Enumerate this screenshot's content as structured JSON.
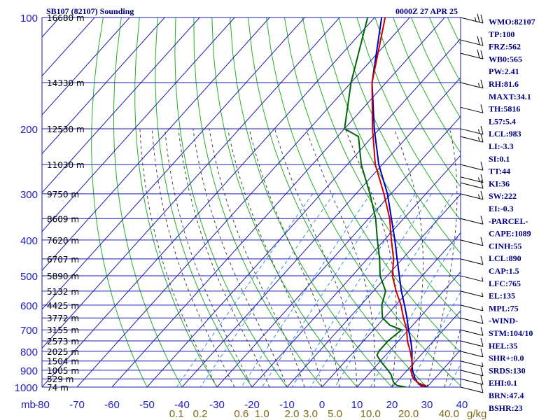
{
  "header": {
    "station": "SB107 (82107) Sounding",
    "time": "0000Z 27 APR 25"
  },
  "colors": {
    "grid": "#1c1cb0",
    "isotherm": "#1c1cb0",
    "dry_adiabat": "#21b021",
    "moist_adiabat": "#444444",
    "mixing_ratio": "#3b8ee0",
    "temperature": "#cc0000",
    "dewpoint": "#006400",
    "parcel": "#0000c0",
    "wind_barb": "#000000",
    "indices_text": "#00007f"
  },
  "chart_data": {
    "type": "skew-t",
    "x_unit_label": "mb",
    "mixing_unit_label": "g/kg",
    "pressure_levels": [
      {
        "p": 100,
        "label": "100",
        "height": "16680 m"
      },
      {
        "p": 150,
        "label": "",
        "height": "14330 m"
      },
      {
        "p": 200,
        "label": "200",
        "height": "12530 m"
      },
      {
        "p": 250,
        "label": "",
        "height": "11030 m"
      },
      {
        "p": 300,
        "label": "300",
        "height": "9750 m"
      },
      {
        "p": 350,
        "label": "",
        "height": "8609 m"
      },
      {
        "p": 400,
        "label": "400",
        "height": "7620 m"
      },
      {
        "p": 450,
        "label": "",
        "height": "6707 m"
      },
      {
        "p": 500,
        "label": "500",
        "height": "5890 m"
      },
      {
        "p": 550,
        "label": "",
        "height": "5132 m"
      },
      {
        "p": 600,
        "label": "600",
        "height": "4425 m"
      },
      {
        "p": 650,
        "label": "",
        "height": "3772 m"
      },
      {
        "p": 700,
        "label": "700",
        "height": "3155 m"
      },
      {
        "p": 750,
        "label": "",
        "height": "2573 m"
      },
      {
        "p": 800,
        "label": "800",
        "height": "2025 m"
      },
      {
        "p": 850,
        "label": "",
        "height": "1504 m"
      },
      {
        "p": 900,
        "label": "900",
        "height": "1005 m"
      },
      {
        "p": 950,
        "label": "",
        "height": "529 m"
      },
      {
        "p": 1000,
        "label": "1000",
        "height": "74 m"
      }
    ],
    "temperature_ticks": [
      "-80",
      "-70",
      "-60",
      "-50",
      "-40",
      "-30",
      "-20",
      "-10",
      "0",
      "10",
      "20",
      "30",
      "40"
    ],
    "mixing_ratio_ticks": [
      "0.1",
      "0.2",
      "0.6",
      "1.0",
      "2.0",
      "3.0",
      "5.0",
      "10.0",
      "20.0",
      "40.0"
    ],
    "mixing_ratio_values": [
      0.1,
      0.2,
      0.6,
      1.0,
      2.0,
      3.0,
      5.0,
      10.0,
      20.0,
      40.0
    ],
    "temperature_profile": [
      {
        "p": 1000,
        "t": 28.0
      },
      {
        "p": 990,
        "t": 29.0
      },
      {
        "p": 975,
        "t": 26.5
      },
      {
        "p": 950,
        "t": 24.0
      },
      {
        "p": 925,
        "t": 22.5
      },
      {
        "p": 900,
        "t": 21.0
      },
      {
        "p": 880,
        "t": 20.5
      },
      {
        "p": 850,
        "t": 19.0
      },
      {
        "p": 800,
        "t": 16.0
      },
      {
        "p": 750,
        "t": 12.5
      },
      {
        "p": 700,
        "t": 9.5
      },
      {
        "p": 650,
        "t": 5.5
      },
      {
        "p": 600,
        "t": 1.5
      },
      {
        "p": 550,
        "t": -3.5
      },
      {
        "p": 500,
        "t": -8.5
      },
      {
        "p": 450,
        "t": -12.5
      },
      {
        "p": 400,
        "t": -18.0
      },
      {
        "p": 350,
        "t": -24.0
      },
      {
        "p": 300,
        "t": -32.0
      },
      {
        "p": 250,
        "t": -42.0
      },
      {
        "p": 200,
        "t": -52.0
      },
      {
        "p": 150,
        "t": -64.0
      },
      {
        "p": 100,
        "t": -77.0
      }
    ],
    "dewpoint_profile": [
      {
        "p": 1000,
        "t": 24.0
      },
      {
        "p": 990,
        "t": 21.0
      },
      {
        "p": 975,
        "t": 19.5
      },
      {
        "p": 950,
        "t": 18.0
      },
      {
        "p": 925,
        "t": 16.5
      },
      {
        "p": 900,
        "t": 14.5
      },
      {
        "p": 850,
        "t": 10.0
      },
      {
        "p": 820,
        "t": 7.5
      },
      {
        "p": 800,
        "t": 7.0
      },
      {
        "p": 750,
        "t": 7.0
      },
      {
        "p": 700,
        "t": 8.0
      },
      {
        "p": 680,
        "t": 3.5
      },
      {
        "p": 650,
        "t": -0.5
      },
      {
        "p": 600,
        "t": -4.0
      },
      {
        "p": 550,
        "t": -6.5
      },
      {
        "p": 500,
        "t": -12.0
      },
      {
        "p": 450,
        "t": -16.5
      },
      {
        "p": 400,
        "t": -22.0
      },
      {
        "p": 350,
        "t": -28.0
      },
      {
        "p": 300,
        "t": -36.0
      },
      {
        "p": 250,
        "t": -46.0
      },
      {
        "p": 210,
        "t": -54.0
      },
      {
        "p": 200,
        "t": -60.0
      },
      {
        "p": 150,
        "t": -70.0
      },
      {
        "p": 100,
        "t": -82.0
      }
    ],
    "parcel_profile": [
      {
        "p": 1000,
        "t": 30.0
      },
      {
        "p": 983,
        "t": 27.0
      },
      {
        "p": 950,
        "t": 24.5
      },
      {
        "p": 900,
        "t": 21.5
      },
      {
        "p": 850,
        "t": 19.0
      },
      {
        "p": 800,
        "t": 16.5
      },
      {
        "p": 750,
        "t": 13.5
      },
      {
        "p": 700,
        "t": 10.0
      },
      {
        "p": 650,
        "t": 6.5
      },
      {
        "p": 600,
        "t": 2.5
      },
      {
        "p": 550,
        "t": -2.0
      },
      {
        "p": 500,
        "t": -6.5
      },
      {
        "p": 450,
        "t": -11.5
      },
      {
        "p": 400,
        "t": -17.0
      },
      {
        "p": 350,
        "t": -23.5
      },
      {
        "p": 300,
        "t": -31.0
      },
      {
        "p": 250,
        "t": -41.0
      },
      {
        "p": 200,
        "t": -51.5
      },
      {
        "p": 150,
        "t": -64.0
      },
      {
        "p": 100,
        "t": -78.0
      }
    ],
    "wind_barbs": [
      {
        "p": 100,
        "kt": 25
      },
      {
        "p": 115,
        "kt": 20
      },
      {
        "p": 125,
        "kt": 20
      },
      {
        "p": 150,
        "kt": 15
      },
      {
        "p": 175,
        "kt": 10
      },
      {
        "p": 200,
        "kt": 15
      },
      {
        "p": 210,
        "kt": 15
      },
      {
        "p": 250,
        "kt": 10
      },
      {
        "p": 270,
        "kt": 15
      },
      {
        "p": 280,
        "kt": 10
      },
      {
        "p": 300,
        "kt": 15
      },
      {
        "p": 350,
        "kt": 10
      },
      {
        "p": 400,
        "kt": 10
      },
      {
        "p": 450,
        "kt": 10
      },
      {
        "p": 500,
        "kt": 5
      },
      {
        "p": 550,
        "kt": 5
      },
      {
        "p": 600,
        "kt": 5
      },
      {
        "p": 650,
        "kt": 10
      },
      {
        "p": 700,
        "kt": 10
      },
      {
        "p": 750,
        "kt": 10
      },
      {
        "p": 800,
        "kt": 10
      },
      {
        "p": 850,
        "kt": 5
      },
      {
        "p": 900,
        "kt": 10
      },
      {
        "p": 950,
        "kt": 10
      },
      {
        "p": 1000,
        "kt": 10
      }
    ]
  },
  "indices": [
    "WMO:82107",
    "TP:100",
    "FRZ:562",
    "WB0:565",
    "PW:2.41",
    "RH:81.6",
    "MAXT:34.1",
    "TH:5816",
    "L57:5.4",
    "LCL:983",
    "LI:-3.3",
    "SI:0.1",
    "TT:44",
    "KI:36",
    "SW:222",
    "EI:-0.3",
    "-PARCEL-",
    "CAPE:1089",
    "CINH:55",
    "LCL:890",
    "CAP:1.5",
    "LFC:765",
    "EL:135",
    "MPL:75",
    "-WIND-",
    "STM:104/10",
    "HEL:35",
    "SHR+:0.0",
    "SRDS:130",
    "EHI:0.1",
    "BRN:47.4",
    "BSHR:23"
  ]
}
